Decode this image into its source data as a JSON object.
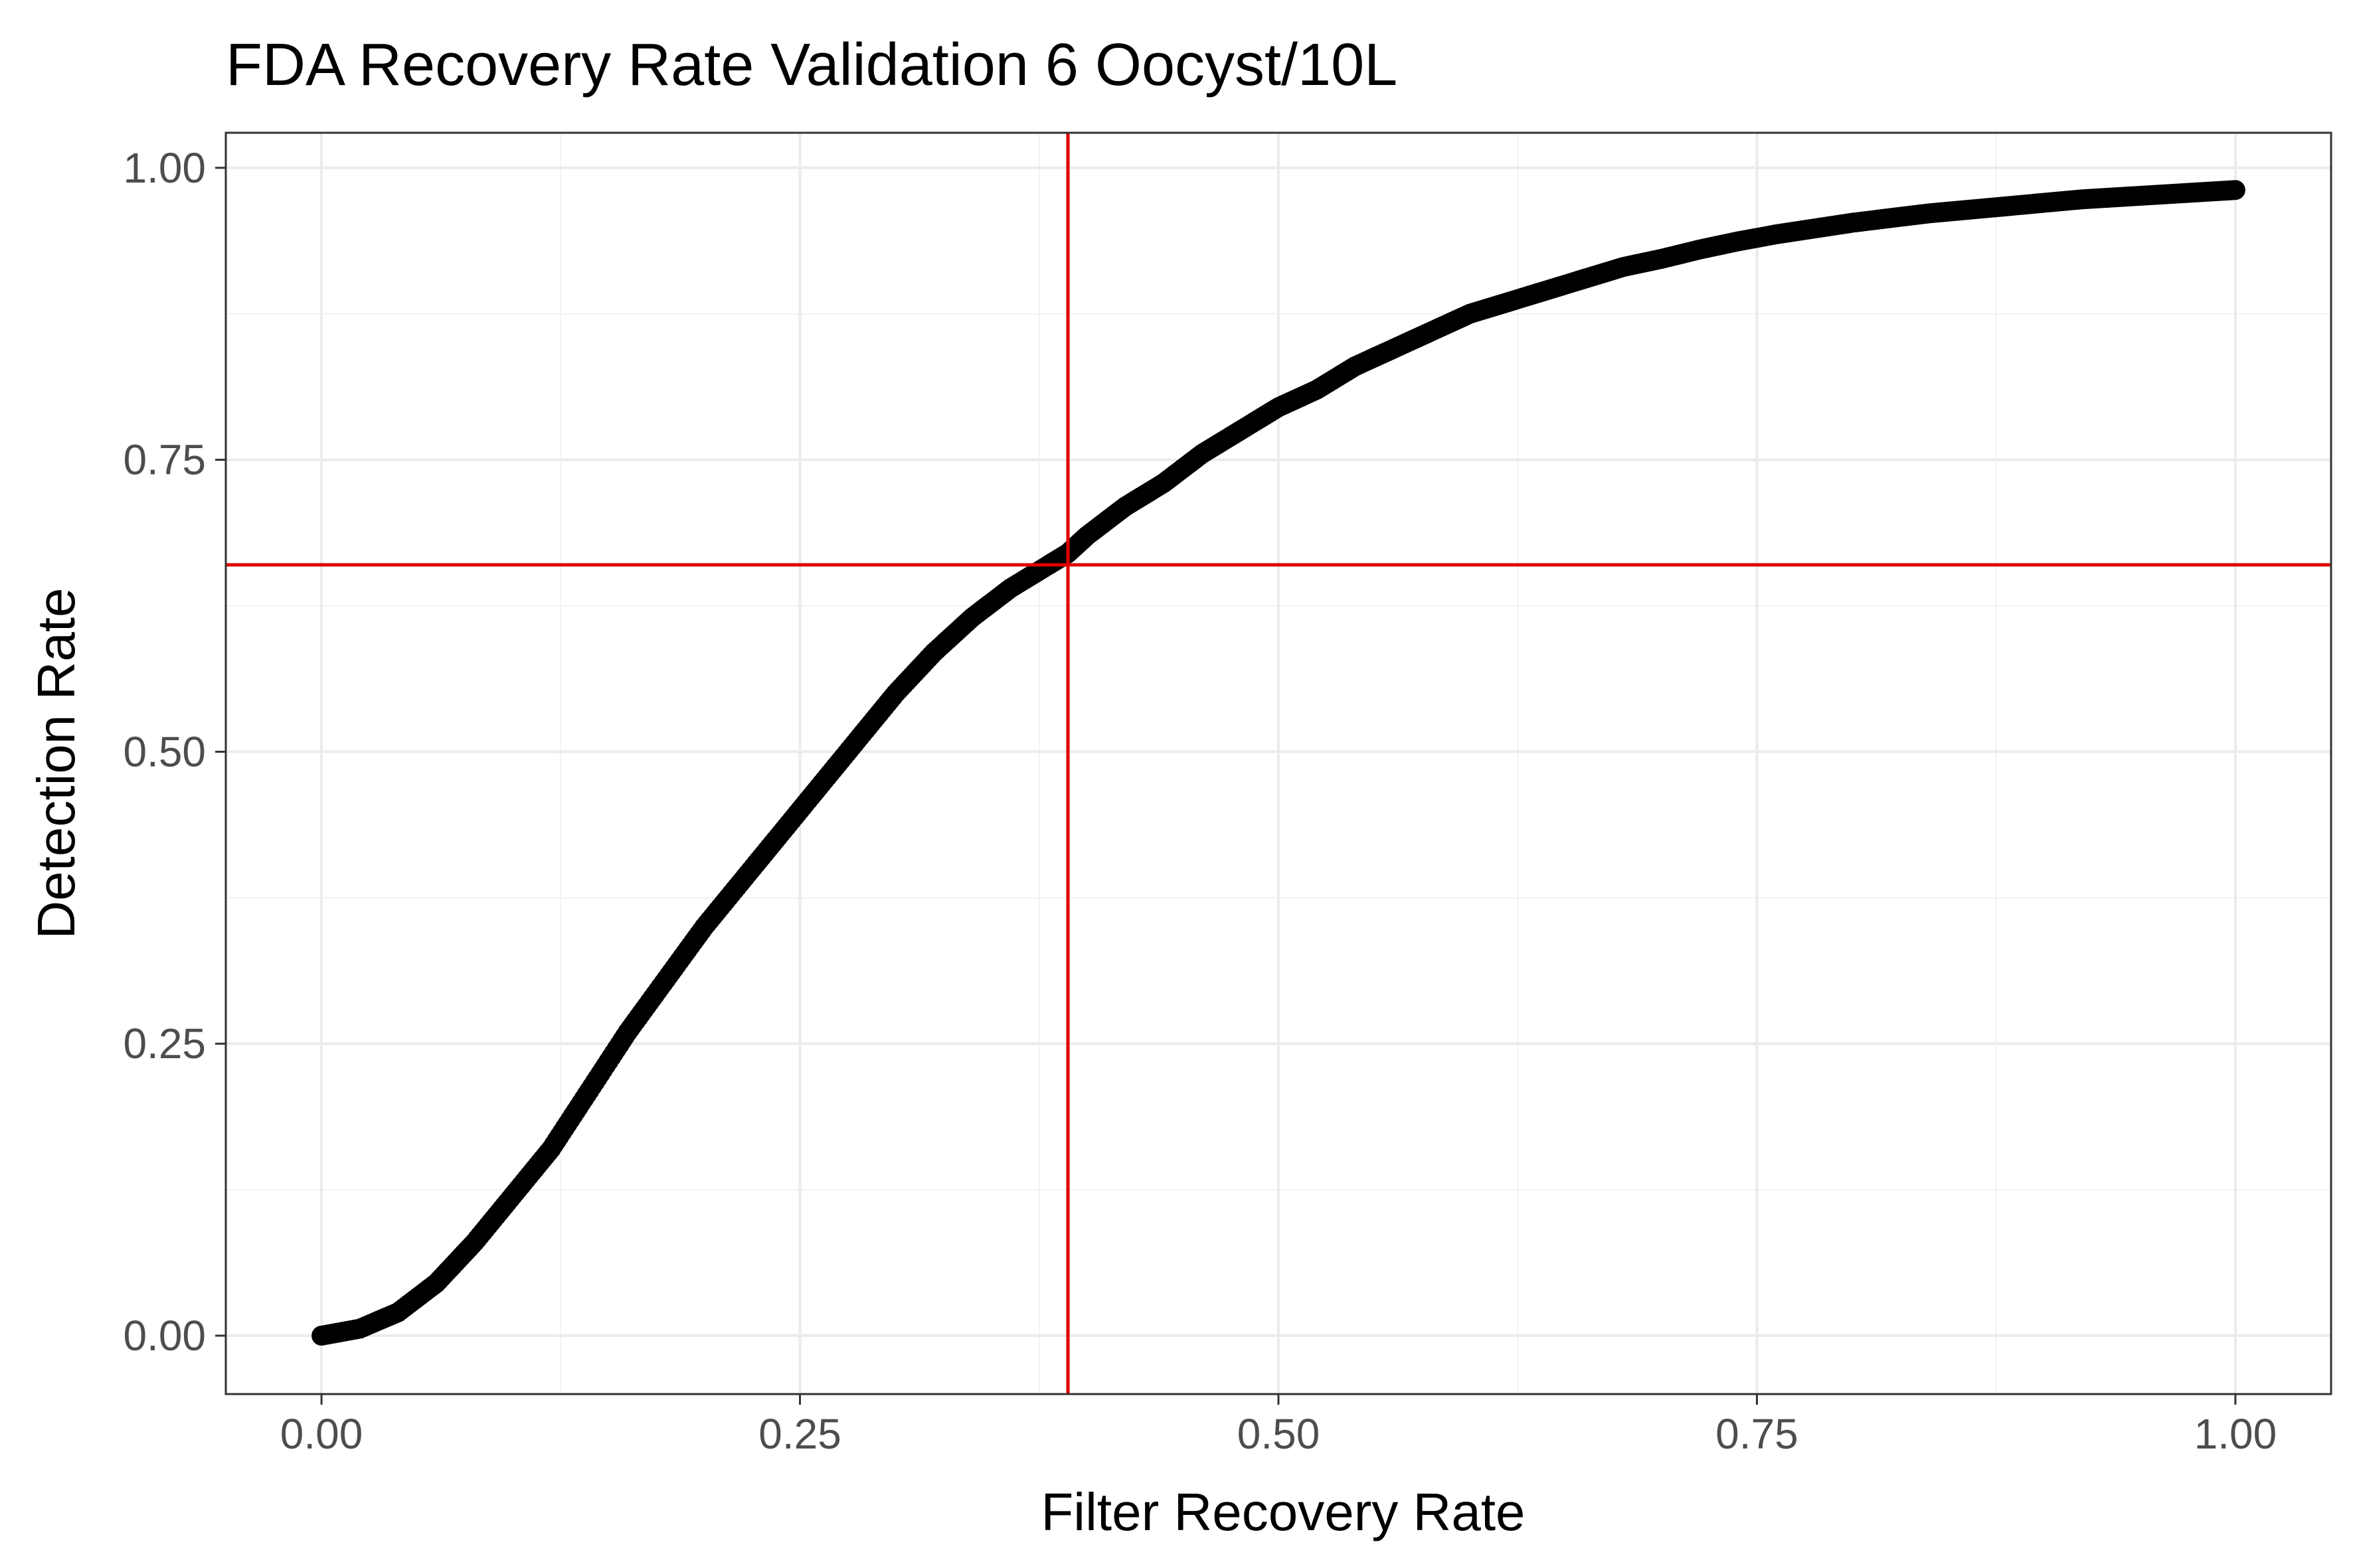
{
  "chart_data": {
    "type": "scatter",
    "title": "FDA Recovery Rate Validation 6 Oocyst/10L",
    "xlabel": "Filter Recovery Rate",
    "ylabel": "Detection Rate",
    "xlim": [
      -0.05,
      1.05
    ],
    "ylim": [
      -0.05,
      1.03
    ],
    "x_ticks": [
      0,
      0.25,
      0.5,
      0.75,
      1
    ],
    "x_tick_labels": [
      "0.00",
      "0.25",
      "0.50",
      "0.75",
      "1.00"
    ],
    "y_ticks": [
      0,
      0.25,
      0.5,
      0.75,
      1
    ],
    "y_tick_labels": [
      "0.00",
      "0.25",
      "0.50",
      "0.75",
      "1.00"
    ],
    "grid": true,
    "legend": "none",
    "point_color": "#000000",
    "reference_line_color": "#e00000",
    "reference_lines": {
      "x": 0.39,
      "y": 0.66
    },
    "series": [
      {
        "x": [
          0.0,
          0.02,
          0.04,
          0.06,
          0.08,
          0.1,
          0.12,
          0.14,
          0.16,
          0.18,
          0.2,
          0.22,
          0.24,
          0.26,
          0.28,
          0.3,
          0.32,
          0.34,
          0.36,
          0.38,
          0.39,
          0.4,
          0.42,
          0.44,
          0.46,
          0.48,
          0.5,
          0.52,
          0.54,
          0.56,
          0.58,
          0.6,
          0.62,
          0.64,
          0.66,
          0.68,
          0.7,
          0.72,
          0.74,
          0.76,
          0.78,
          0.8,
          0.82,
          0.84,
          0.86,
          0.88,
          0.9,
          0.92,
          0.94,
          0.96,
          0.98,
          1.0
        ],
        "y": [
          0.0,
          0.006,
          0.02,
          0.045,
          0.08,
          0.12,
          0.16,
          0.21,
          0.26,
          0.305,
          0.35,
          0.39,
          0.43,
          0.47,
          0.51,
          0.55,
          0.585,
          0.615,
          0.64,
          0.66,
          0.67,
          0.685,
          0.71,
          0.73,
          0.755,
          0.775,
          0.795,
          0.81,
          0.83,
          0.845,
          0.86,
          0.875,
          0.885,
          0.895,
          0.905,
          0.915,
          0.922,
          0.93,
          0.937,
          0.943,
          0.948,
          0.953,
          0.957,
          0.961,
          0.964,
          0.967,
          0.97,
          0.973,
          0.975,
          0.977,
          0.979,
          0.981
        ]
      }
    ]
  }
}
